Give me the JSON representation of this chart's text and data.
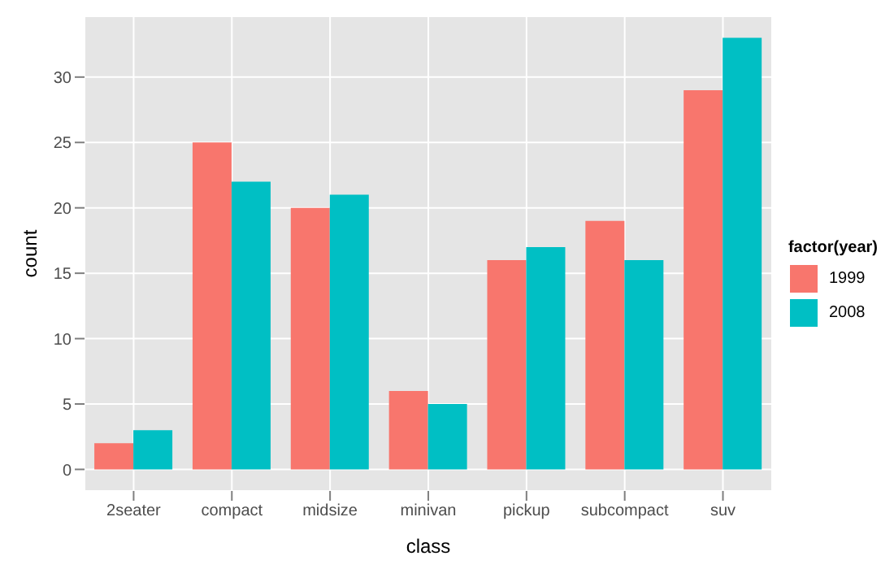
{
  "chart_data": {
    "type": "bar",
    "xlabel": "class",
    "ylabel": "count",
    "legend_title": "factor(year)",
    "categories": [
      "2seater",
      "compact",
      "midsize",
      "minivan",
      "pickup",
      "subcompact",
      "suv"
    ],
    "series": [
      {
        "name": "1999",
        "color": "#f8766d",
        "values": [
          2,
          25,
          20,
          6,
          16,
          19,
          29
        ]
      },
      {
        "name": "2008",
        "color": "#00bfc4",
        "values": [
          3,
          22,
          21,
          5,
          17,
          16,
          33
        ]
      }
    ],
    "ylim": [
      -1.65,
      34.65
    ],
    "yticks": [
      0,
      5,
      10,
      15,
      20,
      25,
      30
    ],
    "grid": true,
    "legend": "right"
  }
}
